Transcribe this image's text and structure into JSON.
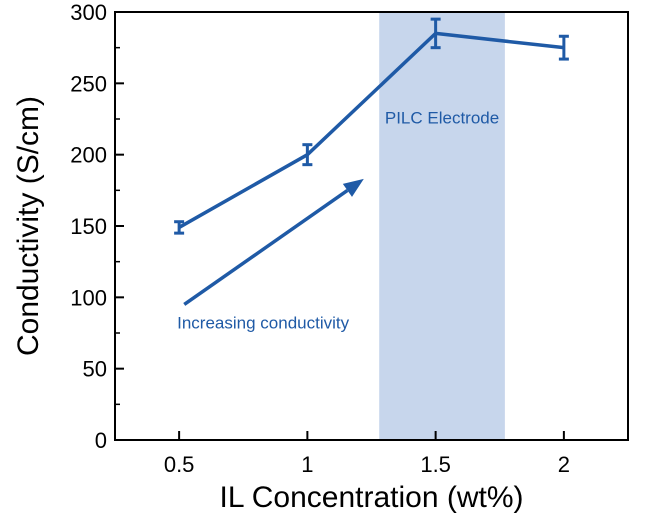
{
  "chart_data": {
    "type": "line",
    "title": "",
    "xlabel": "IL Concentration (wt%)",
    "ylabel": "Conductivity (S/cm)",
    "xlim": [
      0.25,
      2.25
    ],
    "ylim": [
      0,
      300
    ],
    "x_ticks": [
      0.5,
      1,
      1.5,
      2
    ],
    "x_tick_labels": [
      "0.5",
      "1",
      "1.5",
      "2"
    ],
    "y_ticks": [
      0,
      50,
      100,
      150,
      200,
      250,
      300
    ],
    "y_tick_labels": [
      "0",
      "50",
      "100",
      "150",
      "200",
      "250",
      "300"
    ],
    "grid": false,
    "series": [
      {
        "x": [
          0.5,
          1,
          1.5,
          2
        ],
        "y": [
          149,
          200,
          285,
          275
        ],
        "error": [
          4,
          7,
          10,
          8
        ],
        "color": "#1f5aa6"
      }
    ],
    "shaded_region": {
      "x": [
        1.28,
        1.77
      ],
      "label": "PILC Electrode",
      "color": "#c7d6ec",
      "label_color": "#1f5aa6"
    },
    "annotations": [
      {
        "text": "Increasing conductivity",
        "color": "#1f5aa6"
      }
    ],
    "arrow": {
      "from": [
        0.52,
        95
      ],
      "to": [
        1.22,
        183
      ],
      "color": "#1f5aa6"
    }
  }
}
